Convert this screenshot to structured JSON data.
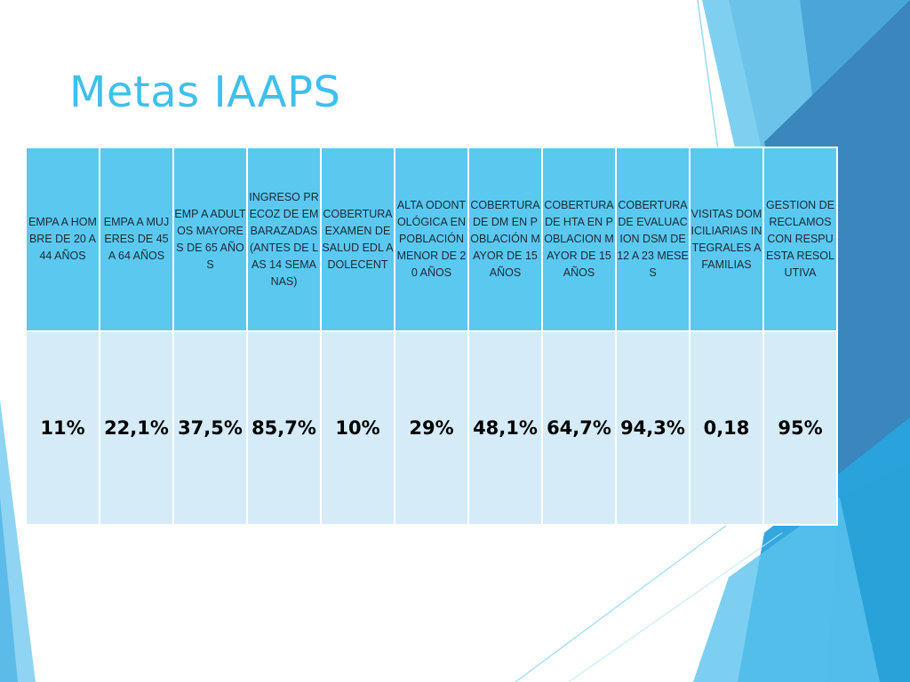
{
  "slide": {
    "title": "Metas IAAPS"
  },
  "table": {
    "headers": [
      "EMPA A HOMBRE DE 20 A 44 AÑOS",
      "EMPA A MUJERES DE 45 A 64 AÑOS",
      "EMP A ADULTOS MAYORES DE 65 AÑOS",
      "INGRESO PRECOZ DE EMBARAZADAS (ANTES DE LAS 14 SEMANAS)",
      "COBERTURA EXAMEN DE SALUD EDL ADOLECENT",
      "ALTA ODONTOLÓGICA EN POBLACIÓN MENOR DE 20 AÑOS",
      "COBERTURA DE DM EN POBLACIÓN MAYOR DE 15 AÑOS",
      "COBERTURA DE HTA EN POBLACION MAYOR DE 15 AÑOS",
      "COBERTURA DE EVALUACION DSM DE 12 A 23 MESES",
      "VISITAS DOMICILIARIAS INTEGRALES A FAMILIAS",
      "GESTION DE RECLAMOS CON RESPUESTA RESOLUTIVA"
    ],
    "values": [
      "11%",
      "22,1%",
      "37,5%",
      "85,7%",
      "10%",
      "29%",
      "48,1%",
      "64,7%",
      "94,3%",
      "0,18",
      "95%"
    ]
  },
  "theme": {
    "title_color": "#3ec0eb",
    "header_fill": "#5bc8f0",
    "value_fill": "#d5ecf8"
  }
}
